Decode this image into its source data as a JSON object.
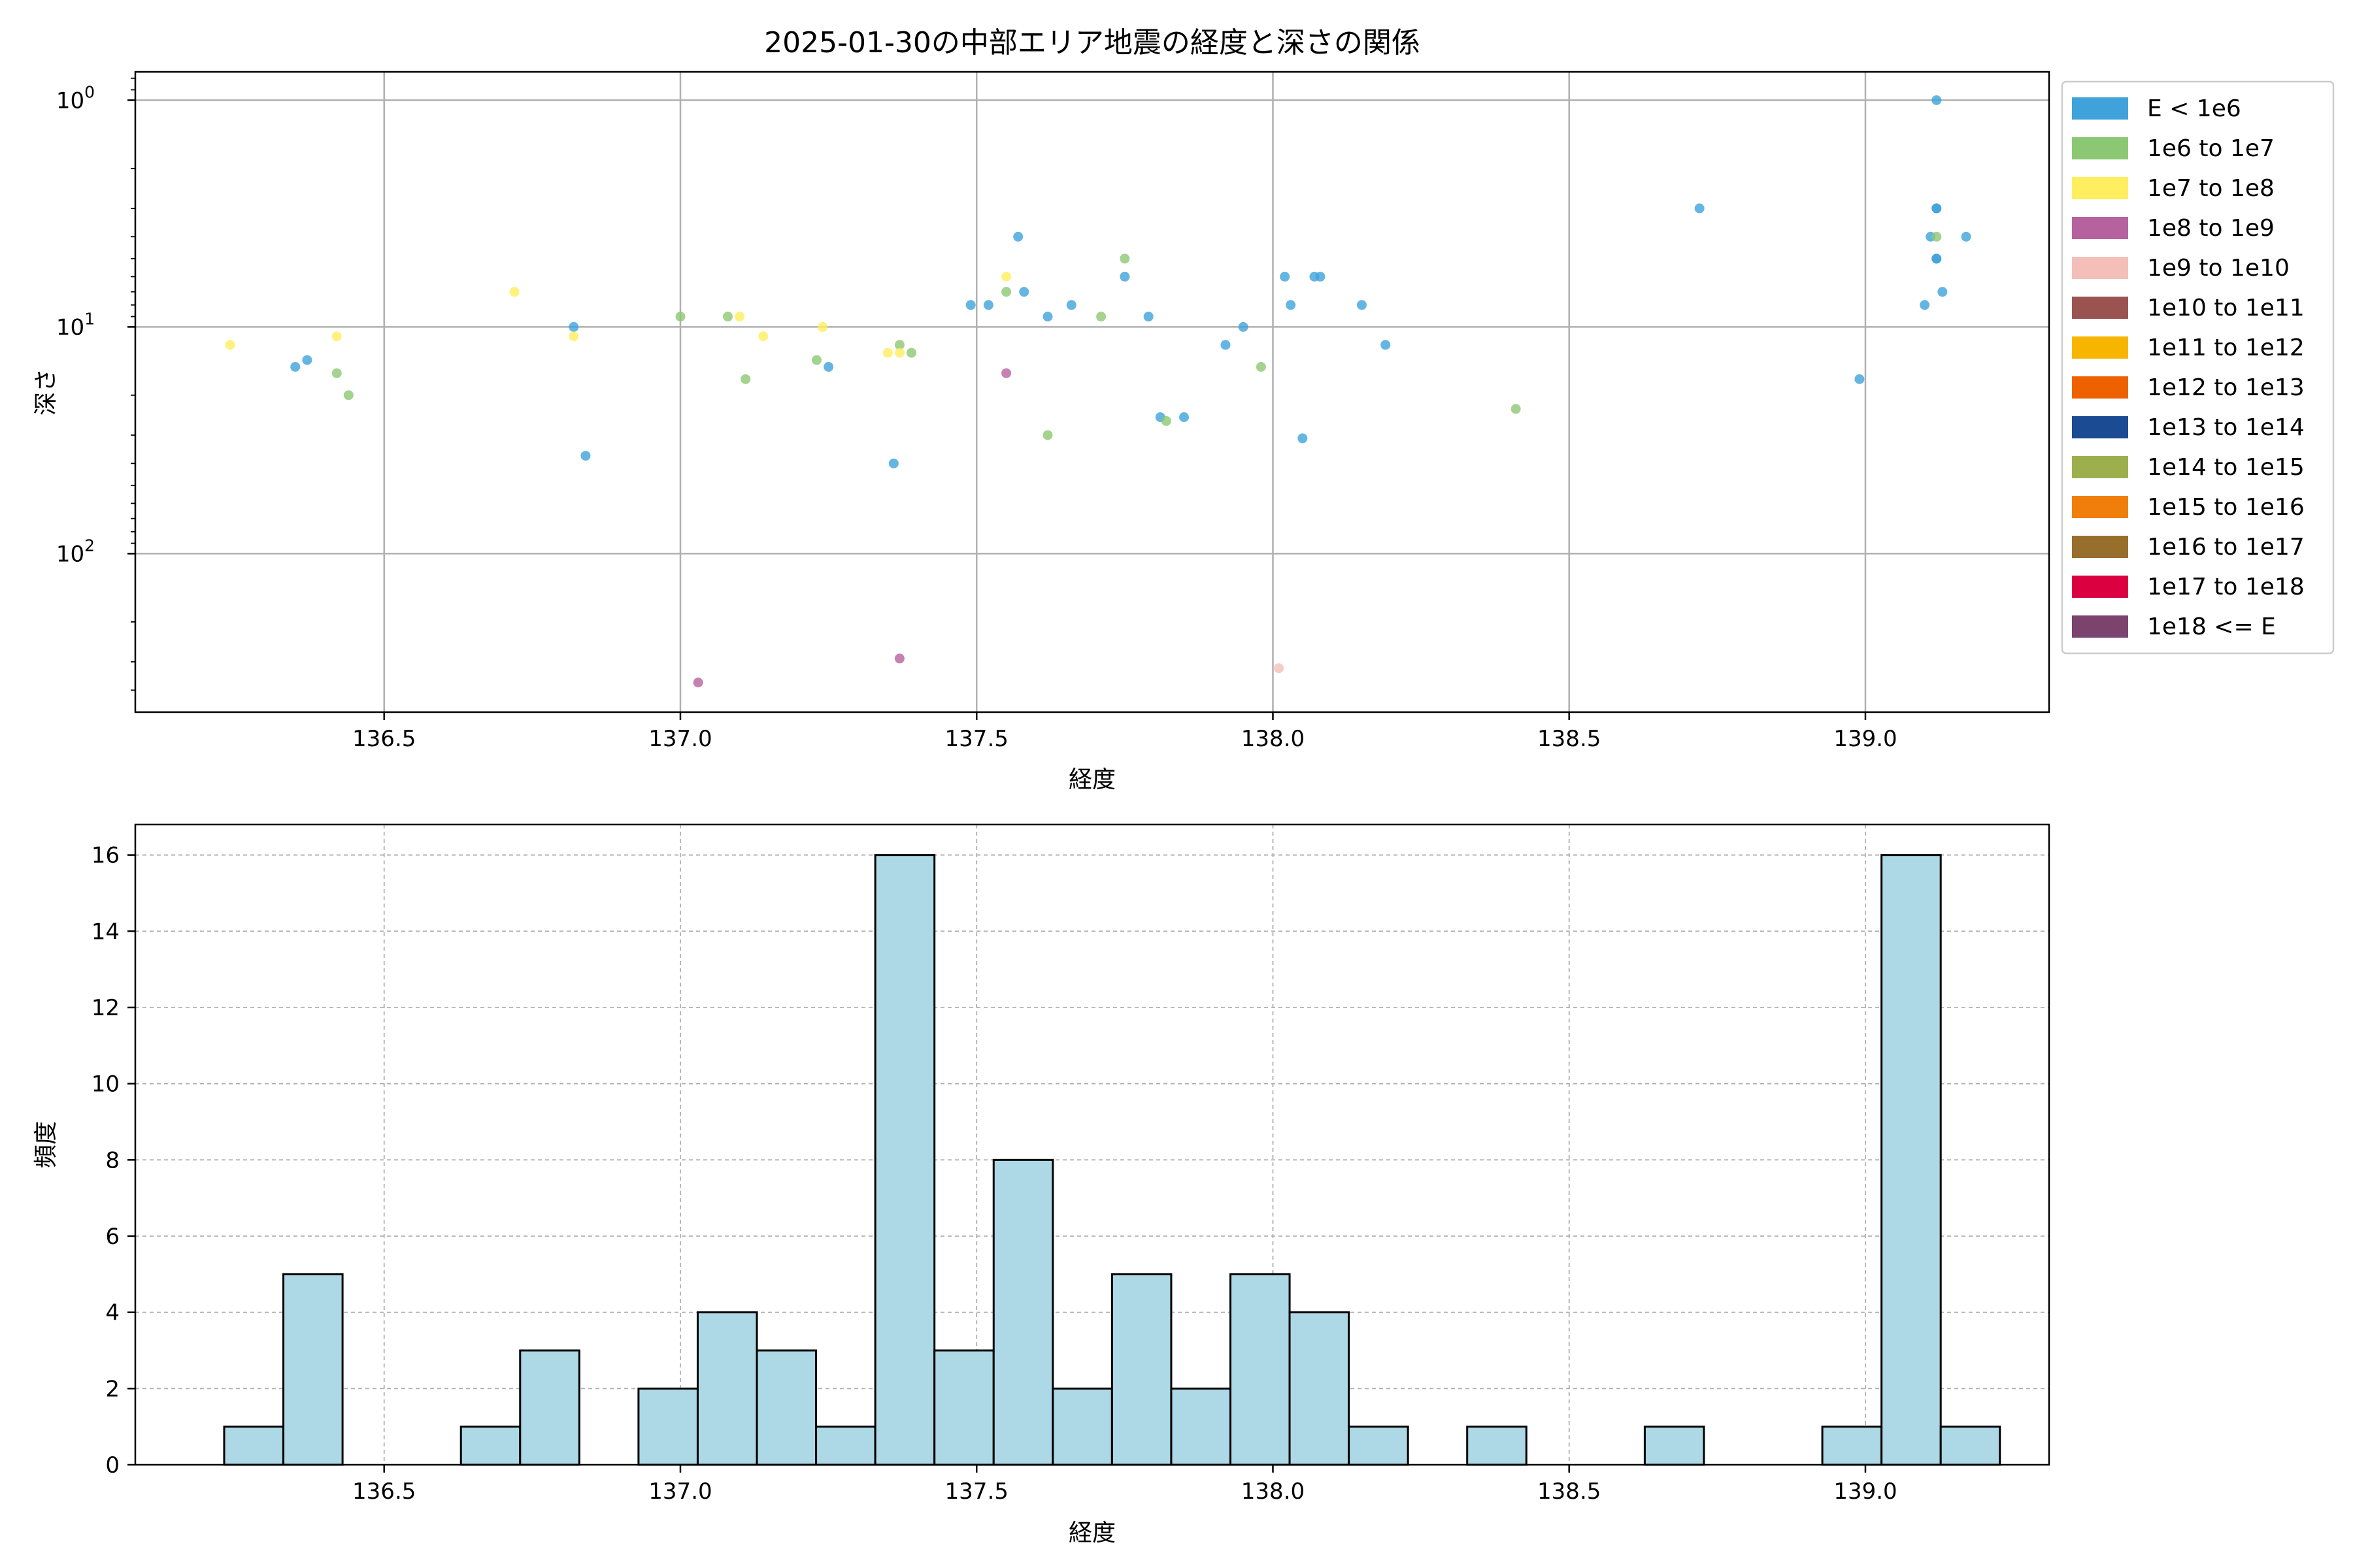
{
  "chart_data": [
    {
      "type": "scatter",
      "title": "2025-01-30の中部エリア地震の経度と深さの関係",
      "xlabel": "経度",
      "ylabel": "深さ",
      "yscale": "log",
      "yaxis_inverted": true,
      "xlim": [
        136.08,
        139.31
      ],
      "ylim": [
        0.75,
        500
      ],
      "xticks": [
        136.5,
        137.0,
        137.5,
        138.0,
        138.5,
        139.0
      ],
      "xtick_labels": [
        "136.5",
        "137.0",
        "137.5",
        "138.0",
        "138.5",
        "139.0"
      ],
      "yticks": [
        1,
        10,
        100
      ],
      "ytick_labels": [
        "10^0",
        "10^1",
        "10^2"
      ],
      "grid": true,
      "legend_position": "outside-right",
      "legend": [
        {
          "label": "E < 1e6",
          "color": "#3fa2db"
        },
        {
          "label": "1e6 to 1e7",
          "color": "#8cc873"
        },
        {
          "label": "1e7 to 1e8",
          "color": "#ffee5e"
        },
        {
          "label": "1e8 to 1e9",
          "color": "#b6629e"
        },
        {
          "label": "1e9 to 1e10",
          "color": "#f4bfb9"
        },
        {
          "label": "1e10 to 1e11",
          "color": "#9b5352"
        },
        {
          "label": "1e11 to 1e12",
          "color": "#f7b500"
        },
        {
          "label": "1e12 to 1e13",
          "color": "#ee6100"
        },
        {
          "label": "1e13 to 1e14",
          "color": "#1b4b93"
        },
        {
          "label": "1e14 to 1e15",
          "color": "#9daf4d"
        },
        {
          "label": "1e15 to 1e16",
          "color": "#ef7f0a"
        },
        {
          "label": "1e16 to 1e17",
          "color": "#976e2b"
        },
        {
          "label": "1e17 to 1e18",
          "color": "#db0040"
        },
        {
          "label": "1e18 <= E",
          "color": "#7c436e"
        }
      ],
      "series": [
        {
          "class": 0,
          "points": [
            [
              136.35,
              15
            ],
            [
              136.37,
              14
            ],
            [
              136.82,
              10
            ],
            [
              136.84,
              37
            ],
            [
              137.25,
              15
            ],
            [
              137.36,
              40
            ],
            [
              137.49,
              8
            ],
            [
              137.52,
              8
            ],
            [
              137.57,
              4
            ],
            [
              137.58,
              7
            ],
            [
              137.62,
              9
            ],
            [
              137.66,
              8
            ],
            [
              137.75,
              6
            ],
            [
              137.79,
              9
            ],
            [
              137.81,
              25
            ],
            [
              137.85,
              25
            ],
            [
              137.92,
              12
            ],
            [
              137.95,
              10
            ],
            [
              138.02,
              6
            ],
            [
              138.03,
              8
            ],
            [
              138.05,
              31
            ],
            [
              138.07,
              6
            ],
            [
              138.08,
              6
            ],
            [
              138.15,
              8
            ],
            [
              138.19,
              12
            ],
            [
              138.72,
              3
            ],
            [
              138.99,
              17
            ],
            [
              139.1,
              8
            ],
            [
              139.11,
              4
            ],
            [
              139.12,
              5
            ],
            [
              139.12,
              5
            ],
            [
              139.12,
              3
            ],
            [
              139.12,
              3
            ],
            [
              139.12,
              1
            ],
            [
              139.13,
              7
            ],
            [
              139.17,
              4
            ]
          ]
        },
        {
          "class": 1,
          "points": [
            [
              136.42,
              16
            ],
            [
              136.44,
              20
            ],
            [
              137.0,
              9
            ],
            [
              137.08,
              9
            ],
            [
              137.11,
              17
            ],
            [
              137.23,
              14
            ],
            [
              137.37,
              12
            ],
            [
              137.39,
              13
            ],
            [
              137.55,
              7
            ],
            [
              137.62,
              30
            ],
            [
              137.71,
              9
            ],
            [
              137.75,
              5
            ],
            [
              137.82,
              26
            ],
            [
              137.98,
              15
            ],
            [
              138.41,
              23
            ],
            [
              139.12,
              4
            ]
          ]
        },
        {
          "class": 2,
          "points": [
            [
              136.24,
              12
            ],
            [
              136.42,
              11
            ],
            [
              136.72,
              7
            ],
            [
              136.82,
              11
            ],
            [
              137.1,
              9
            ],
            [
              137.14,
              11
            ],
            [
              137.24,
              10
            ],
            [
              137.35,
              13
            ],
            [
              137.37,
              13
            ],
            [
              137.55,
              6
            ]
          ]
        },
        {
          "class": 3,
          "points": [
            [
              137.03,
              370
            ],
            [
              137.37,
              290
            ],
            [
              137.55,
              16
            ]
          ]
        },
        {
          "class": 4,
          "points": [
            [
              138.01,
              320
            ]
          ]
        }
      ]
    },
    {
      "type": "bar",
      "subtype": "histogram",
      "xlabel": "経度",
      "ylabel": "頻度",
      "xlim": [
        136.08,
        139.31
      ],
      "ylim": [
        0,
        16.8
      ],
      "xticks": [
        136.5,
        137.0,
        137.5,
        138.0,
        138.5,
        139.0
      ],
      "xtick_labels": [
        "136.5",
        "137.0",
        "137.5",
        "138.0",
        "138.5",
        "139.0"
      ],
      "yticks": [
        0,
        2,
        4,
        6,
        8,
        10,
        12,
        14,
        16
      ],
      "ytick_labels": [
        "0",
        "2",
        "4",
        "6",
        "8",
        "10",
        "12",
        "14",
        "16"
      ],
      "grid": true,
      "bar_color": "#add8e6",
      "edge_color": "#000000",
      "bin_start": 136.23,
      "bin_width": 0.0999,
      "counts": [
        1,
        5,
        0,
        0,
        1,
        3,
        0,
        2,
        4,
        3,
        1,
        16,
        3,
        8,
        2,
        5,
        2,
        5,
        4,
        1,
        0,
        1,
        0,
        0,
        1,
        0,
        0,
        1,
        16,
        1
      ]
    }
  ]
}
